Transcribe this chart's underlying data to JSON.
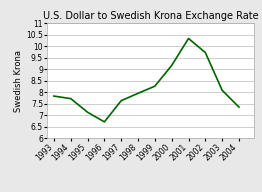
{
  "title": "U.S. Dollar to Swedish Krona Exchange Rate",
  "ylabel": "Swedish Krona",
  "years": [
    1993,
    1994,
    1995,
    1996,
    1997,
    1998,
    1999,
    2000,
    2001,
    2002,
    2003,
    2004
  ],
  "values": [
    7.83,
    7.72,
    7.13,
    6.71,
    7.63,
    7.95,
    8.26,
    9.16,
    10.33,
    9.72,
    8.08,
    7.35
  ],
  "line_color": "#006400",
  "background_color": "#e8e8e8",
  "plot_bg_color": "#ffffff",
  "ylim": [
    6,
    11
  ],
  "yticks": [
    6,
    6.5,
    7,
    7.5,
    8,
    8.5,
    9,
    9.5,
    10,
    10.5,
    11
  ],
  "title_fontsize": 7,
  "label_fontsize": 6,
  "tick_fontsize": 5.5,
  "grid_color": "#bbbbbb",
  "line_width": 1.2
}
